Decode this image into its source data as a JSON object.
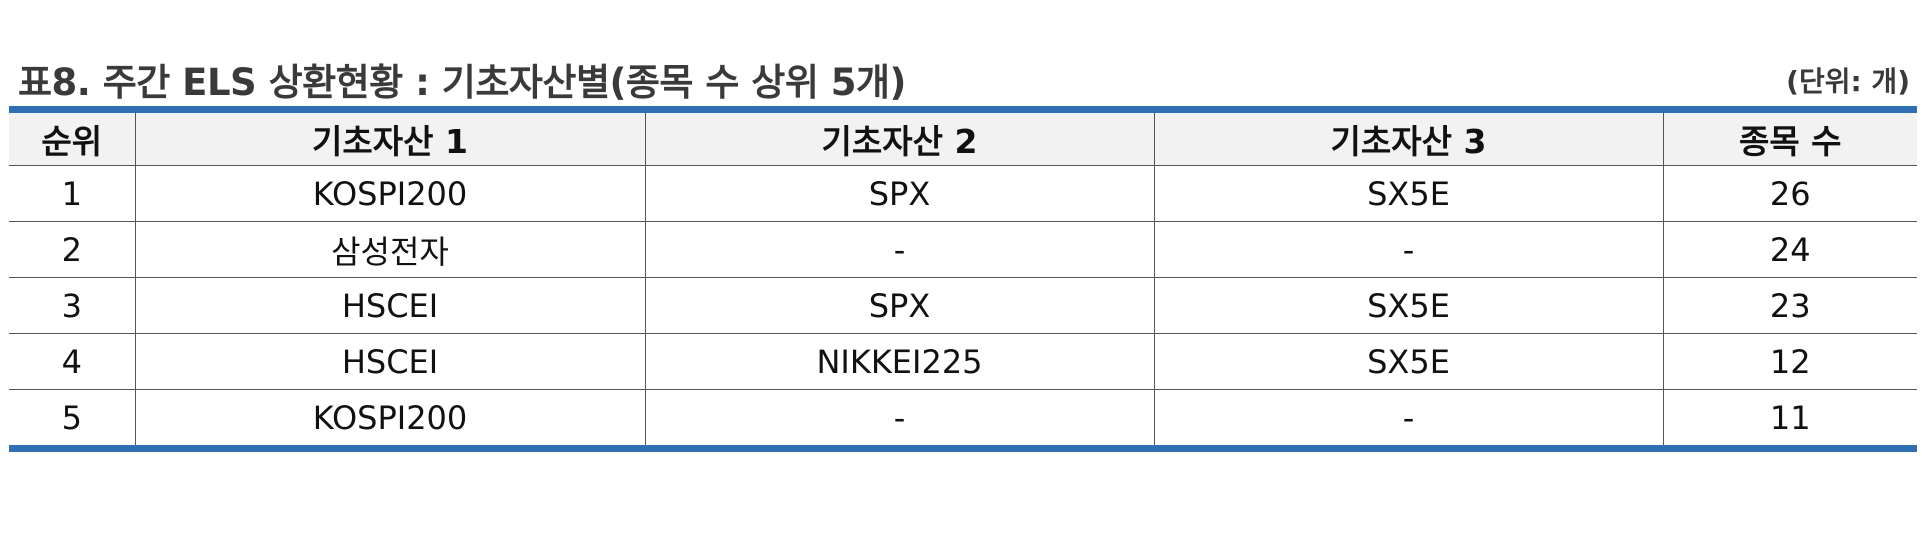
{
  "title": "표8. 주간 ELS 상환현황 : 기초자산별(종목 수 상위 5개)",
  "unit": "(단위: 개)",
  "table": {
    "headers": [
      "순위",
      "기초자산 1",
      "기초자산 2",
      "기초자산 3",
      "종목 수"
    ],
    "rows": [
      [
        "1",
        "KOSPI200",
        "SPX",
        "SX5E",
        "26"
      ],
      [
        "2",
        "삼성전자",
        "-",
        "-",
        "24"
      ],
      [
        "3",
        "HSCEI",
        "SPX",
        "SX5E",
        "23"
      ],
      [
        "4",
        "HSCEI",
        "NIKKEI225",
        "SX5E",
        "12"
      ],
      [
        "5",
        "KOSPI200",
        "-",
        "-",
        "11"
      ]
    ]
  },
  "colors": {
    "accent": "#2f6fb4",
    "header_bg": "#f2f2f2",
    "title_text": "#3a3a3a"
  }
}
